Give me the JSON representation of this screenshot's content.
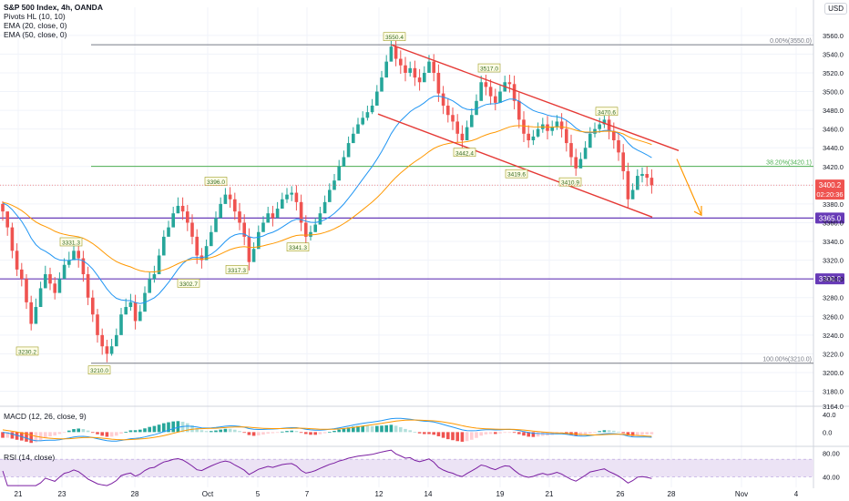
{
  "header": {
    "title": "S&P 500 Index, 4h, OANDA",
    "indicators": [
      "Pivots HL (10, 10)",
      "EMA (20, close, 0)",
      "EMA (50, close, 0)"
    ],
    "currency": "USD"
  },
  "colors": {
    "up": "#26a69a",
    "down": "#ef5350",
    "ema20": "#2196f3",
    "ema50": "#ff9800",
    "channel": "#e53935",
    "fib_mid": "#4caf50",
    "level": "#673ab7",
    "macd_line": "#2196f3",
    "signal_line": "#ff9800",
    "rsi": "#7b1fa2",
    "rsi_band": "#ece3f5"
  },
  "chart_data": [
    {
      "type": "candlestick",
      "title": "S&P 500 Index, 4h, OANDA",
      "x_ticks": [
        "21",
        "23",
        "28",
        "Oct",
        "5",
        "7",
        "12",
        "14",
        "19",
        "21",
        "26",
        "28",
        "Nov",
        "4"
      ],
      "y_ticks": [
        3164.0,
        3180.0,
        3200.0,
        3220.0,
        3240.0,
        3260.0,
        3280.0,
        3300.0,
        3320.0,
        3340.0,
        3360.0,
        3380.0,
        3400.0,
        3420.0,
        3440.0,
        3460.0,
        3480.0,
        3500.0,
        3520.0,
        3540.0,
        3560.0
      ],
      "ylim": [
        3164,
        3590
      ],
      "candles_close": [
        3372,
        3355,
        3330,
        3310,
        3300,
        3275,
        3252,
        3270,
        3290,
        3305,
        3295,
        3285,
        3300,
        3315,
        3320,
        3330,
        3322,
        3305,
        3280,
        3262,
        3240,
        3228,
        3220,
        3228,
        3240,
        3262,
        3270,
        3275,
        3255,
        3265,
        3285,
        3300,
        3305,
        3325,
        3345,
        3355,
        3370,
        3378,
        3372,
        3360,
        3345,
        3325,
        3320,
        3335,
        3350,
        3365,
        3380,
        3390,
        3385,
        3372,
        3360,
        3345,
        3318,
        3332,
        3350,
        3360,
        3370,
        3365,
        3375,
        3385,
        3390,
        3392,
        3382,
        3360,
        3345,
        3350,
        3358,
        3370,
        3382,
        3395,
        3405,
        3420,
        3430,
        3445,
        3455,
        3465,
        3472,
        3478,
        3485,
        3500,
        3515,
        3532,
        3548,
        3535,
        3528,
        3520,
        3525,
        3515,
        3510,
        3520,
        3532,
        3520,
        3498,
        3485,
        3475,
        3468,
        3455,
        3448,
        3462,
        3475,
        3490,
        3510,
        3505,
        3495,
        3488,
        3500,
        3510,
        3508,
        3490,
        3470,
        3455,
        3448,
        3452,
        3460,
        3465,
        3458,
        3462,
        3468,
        3460,
        3445,
        3430,
        3418,
        3428,
        3440,
        3455,
        3460,
        3465,
        3470,
        3458,
        3448,
        3435,
        3415,
        3385,
        3395,
        3410,
        3412,
        3408,
        3400
      ],
      "candles_low": [
        3362,
        3346,
        3322,
        3303,
        3292,
        3268,
        3245,
        3262,
        3283,
        3297,
        3288,
        3278,
        3293,
        3308,
        3312,
        3322,
        3312,
        3297,
        3272,
        3254,
        3232,
        3219,
        3211,
        3218,
        3231,
        3253,
        3262,
        3266,
        3246,
        3256,
        3276,
        3291,
        3296,
        3316,
        3336,
        3346,
        3361,
        3370,
        3363,
        3351,
        3337,
        3316,
        3311,
        3325,
        3341,
        3356,
        3371,
        3381,
        3376,
        3363,
        3352,
        3336,
        3309,
        3323,
        3341,
        3351,
        3360,
        3356,
        3366,
        3376,
        3381,
        3383,
        3373,
        3351,
        3337,
        3341,
        3350,
        3361,
        3373,
        3386,
        3397,
        3411,
        3422,
        3436,
        3446,
        3457,
        3464,
        3469,
        3476,
        3491,
        3506,
        3523,
        3540,
        3527,
        3519,
        3511,
        3516,
        3506,
        3501,
        3511,
        3523,
        3511,
        3489,
        3476,
        3467,
        3459,
        3446,
        3440,
        3453,
        3466,
        3481,
        3501,
        3496,
        3486,
        3480,
        3491,
        3501,
        3499,
        3481,
        3461,
        3446,
        3440,
        3443,
        3451,
        3456,
        3449,
        3453,
        3459,
        3451,
        3436,
        3421,
        3410,
        3419,
        3431,
        3446,
        3451,
        3456,
        3461,
        3449,
        3439,
        3426,
        3406,
        3376,
        3386,
        3401,
        3403,
        3399,
        3391
      ],
      "candles_high": [
        3383,
        3372,
        3360,
        3338,
        3317,
        3305,
        3282,
        3279,
        3297,
        3314,
        3312,
        3302,
        3307,
        3322,
        3329,
        3339,
        3338,
        3330,
        3313,
        3288,
        3268,
        3247,
        3235,
        3236,
        3247,
        3269,
        3279,
        3284,
        3283,
        3272,
        3292,
        3307,
        3314,
        3332,
        3352,
        3362,
        3377,
        3387,
        3387,
        3379,
        3369,
        3353,
        3333,
        3342,
        3357,
        3372,
        3387,
        3397,
        3398,
        3392,
        3381,
        3369,
        3354,
        3339,
        3357,
        3367,
        3377,
        3378,
        3382,
        3392,
        3397,
        3399,
        3400,
        3390,
        3368,
        3357,
        3365,
        3377,
        3389,
        3402,
        3412,
        3427,
        3437,
        3452,
        3462,
        3472,
        3479,
        3485,
        3492,
        3507,
        3522,
        3539,
        3555,
        3556,
        3544,
        3537,
        3532,
        3533,
        3524,
        3527,
        3539,
        3540,
        3529,
        3506,
        3493,
        3483,
        3476,
        3464,
        3469,
        3482,
        3497,
        3517,
        3518,
        3513,
        3503,
        3507,
        3517,
        3518,
        3517,
        3499,
        3479,
        3464,
        3459,
        3467,
        3472,
        3474,
        3469,
        3475,
        3477,
        3469,
        3454,
        3439,
        3435,
        3447,
        3462,
        3467,
        3472,
        3477,
        3479,
        3467,
        3456,
        3444,
        3424,
        3402,
        3417,
        3419,
        3420,
        3417
      ],
      "last_price_label": "3400.2",
      "countdown_label": "02:20:36",
      "fib_labels": [
        "0.00%(3550.0)",
        "38.20%(3420.1)",
        "100.00%(3210.0)"
      ],
      "fib_levels": [
        3550.0,
        3420.1,
        3210.0
      ],
      "horizontal_levels": [
        {
          "label": "3365.0",
          "value": 3365.0
        },
        {
          "label": "3300.0",
          "value": 3300.0
        }
      ],
      "pivot_labels": [
        {
          "text": "3550.4",
          "value": 3550.4,
          "kind": "high"
        },
        {
          "text": "3517.0",
          "value": 3517.0,
          "kind": "high"
        },
        {
          "text": "3470.6",
          "value": 3470.6,
          "kind": "high"
        },
        {
          "text": "3442.4",
          "value": 3442.4,
          "kind": "low"
        },
        {
          "text": "3419.6",
          "value": 3419.6,
          "kind": "low"
        },
        {
          "text": "3410.9",
          "value": 3410.9,
          "kind": "low"
        },
        {
          "text": "3396.0",
          "value": 3396.0,
          "kind": "high"
        },
        {
          "text": "3341.3",
          "value": 3341.3,
          "kind": "low"
        },
        {
          "text": "3331.3",
          "value": 3331.3,
          "kind": "high"
        },
        {
          "text": "3317.3",
          "value": 3317.3,
          "kind": "low"
        },
        {
          "text": "3302.7",
          "value": 3302.7,
          "kind": "low"
        },
        {
          "text": "3230.2",
          "value": 3230.2,
          "kind": "low"
        },
        {
          "text": "3210.0",
          "value": 3210.0,
          "kind": "low"
        }
      ],
      "channel_upper": {
        "from": 3550.0,
        "to": 3437.0
      },
      "channel_lower": {
        "from": 3476.0,
        "to": 3366.0
      }
    },
    {
      "type": "histogram+lines",
      "title": "MACD (12, 26, close, 9)",
      "y_ticks": [
        40.0,
        0.0
      ],
      "ylim": [
        -32,
        58
      ]
    },
    {
      "type": "line",
      "title": "RSI (14, close)",
      "y_ticks": [
        80.0,
        40.0
      ],
      "ylim": [
        22,
        92
      ],
      "band": [
        40,
        70
      ]
    }
  ]
}
